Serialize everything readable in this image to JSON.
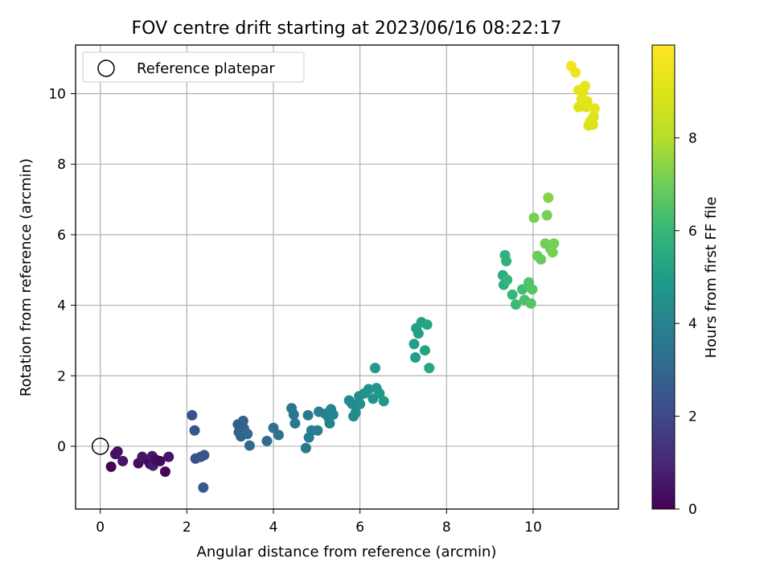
{
  "chart_data": {
    "type": "scatter",
    "title": "FOV centre drift starting at 2023/06/16 08:22:17",
    "xlabel": "Angular distance from reference (arcmin)",
    "ylabel": "Rotation from reference (arcmin)",
    "xlim": [
      -0.57,
      11.97
    ],
    "ylim": [
      -1.78,
      11.38
    ],
    "xticks": [
      0,
      2,
      4,
      6,
      8,
      10
    ],
    "yticks": [
      0,
      2,
      4,
      6,
      8,
      10
    ],
    "grid": true,
    "legend": {
      "position": "top-left",
      "entries": [
        "Reference platepar"
      ]
    },
    "reference_point": {
      "label": "Reference platepar",
      "x": 0,
      "y": 0,
      "marker": "hollow-circle"
    },
    "colorbar": {
      "label": "Hours from first FF file",
      "colormap": "viridis",
      "range": [
        0,
        10
      ],
      "ticks": [
        0,
        2,
        4,
        6,
        8
      ]
    },
    "points": [
      {
        "x": 0.25,
        "y": -0.58,
        "h": 0.1
      },
      {
        "x": 0.35,
        "y": -0.22,
        "h": 0.3
      },
      {
        "x": 0.4,
        "y": -0.15,
        "h": 0.4
      },
      {
        "x": 0.52,
        "y": -0.42,
        "h": 0.5
      },
      {
        "x": 0.88,
        "y": -0.48,
        "h": 0.3
      },
      {
        "x": 0.97,
        "y": -0.3,
        "h": 0.5
      },
      {
        "x": 1.1,
        "y": -0.4,
        "h": 0.4
      },
      {
        "x": 1.15,
        "y": -0.5,
        "h": 0.2
      },
      {
        "x": 1.2,
        "y": -0.28,
        "h": 0.6
      },
      {
        "x": 1.22,
        "y": -0.55,
        "h": 0.7
      },
      {
        "x": 1.28,
        "y": -0.38,
        "h": 0.3
      },
      {
        "x": 1.38,
        "y": -0.42,
        "h": 0.2
      },
      {
        "x": 1.5,
        "y": -0.72,
        "h": 0.1
      },
      {
        "x": 1.58,
        "y": -0.3,
        "h": 0.5
      },
      {
        "x": 2.12,
        "y": 0.88,
        "h": 2.3
      },
      {
        "x": 2.18,
        "y": 0.45,
        "h": 2.4
      },
      {
        "x": 2.2,
        "y": -0.35,
        "h": 2.2
      },
      {
        "x": 2.32,
        "y": -0.3,
        "h": 2.3
      },
      {
        "x": 2.4,
        "y": -0.25,
        "h": 2.4
      },
      {
        "x": 2.38,
        "y": -1.17,
        "h": 2.5
      },
      {
        "x": 3.18,
        "y": 0.62,
        "h": 2.7
      },
      {
        "x": 3.2,
        "y": 0.4,
        "h": 2.8
      },
      {
        "x": 3.25,
        "y": 0.28,
        "h": 2.9
      },
      {
        "x": 3.3,
        "y": 0.72,
        "h": 2.7
      },
      {
        "x": 3.32,
        "y": 0.5,
        "h": 2.8
      },
      {
        "x": 3.4,
        "y": 0.35,
        "h": 3.0
      },
      {
        "x": 3.45,
        "y": 0.02,
        "h": 3.1
      },
      {
        "x": 3.85,
        "y": 0.15,
        "h": 3.2
      },
      {
        "x": 4.0,
        "y": 0.52,
        "h": 3.3
      },
      {
        "x": 4.12,
        "y": 0.32,
        "h": 3.4
      },
      {
        "x": 4.42,
        "y": 1.08,
        "h": 3.5
      },
      {
        "x": 4.47,
        "y": 0.9,
        "h": 3.5
      },
      {
        "x": 4.5,
        "y": 0.65,
        "h": 3.6
      },
      {
        "x": 4.75,
        "y": -0.05,
        "h": 3.6
      },
      {
        "x": 4.8,
        "y": 0.88,
        "h": 3.7
      },
      {
        "x": 4.82,
        "y": 0.25,
        "h": 3.7
      },
      {
        "x": 4.88,
        "y": 0.45,
        "h": 3.8
      },
      {
        "x": 5.02,
        "y": 0.45,
        "h": 3.8
      },
      {
        "x": 5.05,
        "y": 0.98,
        "h": 3.9
      },
      {
        "x": 5.2,
        "y": 0.92,
        "h": 3.9
      },
      {
        "x": 5.28,
        "y": 0.8,
        "h": 4.0
      },
      {
        "x": 5.3,
        "y": 0.65,
        "h": 4.0
      },
      {
        "x": 5.33,
        "y": 1.05,
        "h": 4.1
      },
      {
        "x": 5.38,
        "y": 0.9,
        "h": 4.1
      },
      {
        "x": 5.75,
        "y": 1.3,
        "h": 4.2
      },
      {
        "x": 5.82,
        "y": 1.2,
        "h": 4.3
      },
      {
        "x": 5.85,
        "y": 0.85,
        "h": 4.3
      },
      {
        "x": 5.9,
        "y": 0.95,
        "h": 4.4
      },
      {
        "x": 5.98,
        "y": 1.42,
        "h": 4.4
      },
      {
        "x": 6.0,
        "y": 1.2,
        "h": 4.5
      },
      {
        "x": 6.1,
        "y": 1.5,
        "h": 4.5
      },
      {
        "x": 6.2,
        "y": 1.62,
        "h": 4.6
      },
      {
        "x": 6.3,
        "y": 1.35,
        "h": 4.6
      },
      {
        "x": 6.35,
        "y": 2.22,
        "h": 4.8
      },
      {
        "x": 6.38,
        "y": 1.65,
        "h": 4.7
      },
      {
        "x": 6.45,
        "y": 1.5,
        "h": 4.7
      },
      {
        "x": 6.55,
        "y": 1.28,
        "h": 4.8
      },
      {
        "x": 7.25,
        "y": 2.9,
        "h": 5.0
      },
      {
        "x": 7.28,
        "y": 2.52,
        "h": 5.0
      },
      {
        "x": 7.3,
        "y": 3.35,
        "h": 5.1
      },
      {
        "x": 7.35,
        "y": 3.2,
        "h": 5.1
      },
      {
        "x": 7.42,
        "y": 3.52,
        "h": 5.2
      },
      {
        "x": 7.5,
        "y": 2.72,
        "h": 5.2
      },
      {
        "x": 7.55,
        "y": 3.45,
        "h": 5.3
      },
      {
        "x": 7.6,
        "y": 2.22,
        "h": 5.3
      },
      {
        "x": 9.3,
        "y": 4.85,
        "h": 5.6
      },
      {
        "x": 9.32,
        "y": 4.58,
        "h": 5.7
      },
      {
        "x": 9.35,
        "y": 5.42,
        "h": 5.8
      },
      {
        "x": 9.38,
        "y": 5.25,
        "h": 5.8
      },
      {
        "x": 9.4,
        "y": 4.72,
        "h": 5.9
      },
      {
        "x": 9.52,
        "y": 4.3,
        "h": 6.0
      },
      {
        "x": 9.6,
        "y": 4.02,
        "h": 6.1
      },
      {
        "x": 9.75,
        "y": 4.45,
        "h": 6.3
      },
      {
        "x": 9.8,
        "y": 4.15,
        "h": 6.4
      },
      {
        "x": 9.9,
        "y": 4.65,
        "h": 6.5
      },
      {
        "x": 9.95,
        "y": 4.05,
        "h": 6.6
      },
      {
        "x": 9.98,
        "y": 4.45,
        "h": 6.6
      },
      {
        "x": 10.02,
        "y": 6.48,
        "h": 7.1
      },
      {
        "x": 10.1,
        "y": 5.4,
        "h": 6.9
      },
      {
        "x": 10.18,
        "y": 5.3,
        "h": 6.9
      },
      {
        "x": 10.28,
        "y": 5.75,
        "h": 7.0
      },
      {
        "x": 10.32,
        "y": 6.55,
        "h": 7.1
      },
      {
        "x": 10.35,
        "y": 7.05,
        "h": 7.3
      },
      {
        "x": 10.4,
        "y": 5.6,
        "h": 7.0
      },
      {
        "x": 10.45,
        "y": 5.5,
        "h": 7.1
      },
      {
        "x": 10.48,
        "y": 5.75,
        "h": 7.1
      },
      {
        "x": 10.88,
        "y": 10.78,
        "h": 9.6
      },
      {
        "x": 10.98,
        "y": 10.6,
        "h": 9.5
      },
      {
        "x": 11.05,
        "y": 10.1,
        "h": 9.3
      },
      {
        "x": 11.05,
        "y": 9.62,
        "h": 9.1
      },
      {
        "x": 11.12,
        "y": 9.85,
        "h": 9.2
      },
      {
        "x": 11.15,
        "y": 10.05,
        "h": 9.2
      },
      {
        "x": 11.2,
        "y": 10.22,
        "h": 9.3
      },
      {
        "x": 11.22,
        "y": 9.62,
        "h": 9.1
      },
      {
        "x": 11.25,
        "y": 9.78,
        "h": 9.2
      },
      {
        "x": 11.28,
        "y": 9.1,
        "h": 9.0
      },
      {
        "x": 11.32,
        "y": 9.22,
        "h": 9.1
      },
      {
        "x": 11.38,
        "y": 9.12,
        "h": 9.0
      },
      {
        "x": 11.4,
        "y": 9.35,
        "h": 9.1
      },
      {
        "x": 11.42,
        "y": 9.58,
        "h": 9.2
      }
    ]
  }
}
